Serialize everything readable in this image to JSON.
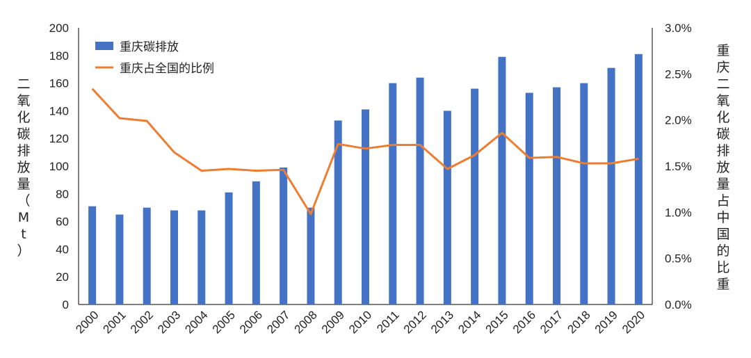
{
  "chart_data": {
    "type": "bar",
    "categories": [
      "2000",
      "2001",
      "2002",
      "2003",
      "2004",
      "2005",
      "2006",
      "2007",
      "2008",
      "2009",
      "2010",
      "2011",
      "2012",
      "2013",
      "2014",
      "2015",
      "2016",
      "2017",
      "2018",
      "2019",
      "2020"
    ],
    "series": [
      {
        "name": "重庆碳排放",
        "type": "bar",
        "axis": "left",
        "color": "#4472C4",
        "values": [
          71,
          65,
          70,
          68,
          68,
          81,
          89,
          99,
          70,
          133,
          141,
          160,
          164,
          140,
          156,
          179,
          153,
          157,
          160,
          171,
          181
        ]
      },
      {
        "name": "重庆占全国的比例",
        "type": "line",
        "axis": "right",
        "color": "#ED7D31",
        "values": [
          2.34,
          2.02,
          1.99,
          1.65,
          1.45,
          1.47,
          1.45,
          1.46,
          0.98,
          1.74,
          1.69,
          1.73,
          1.73,
          1.47,
          1.62,
          1.86,
          1.59,
          1.6,
          1.53,
          1.53,
          1.58
        ]
      }
    ],
    "y_left": {
      "label": "二氧化碳排放量（Mt）",
      "ylim": [
        0,
        200
      ],
      "ticks": [
        "0",
        "20",
        "40",
        "60",
        "80",
        "100",
        "120",
        "140",
        "160",
        "180",
        "200"
      ]
    },
    "y_right": {
      "label": "重庆二氧化碳排放量占中国的比重",
      "ylim": [
        0,
        3.0
      ],
      "ticks": [
        "0.0%",
        "0.5%",
        "1.0%",
        "1.5%",
        "2.0%",
        "2.5%",
        "3.0%"
      ]
    },
    "grid": false,
    "legend": "top-left"
  }
}
